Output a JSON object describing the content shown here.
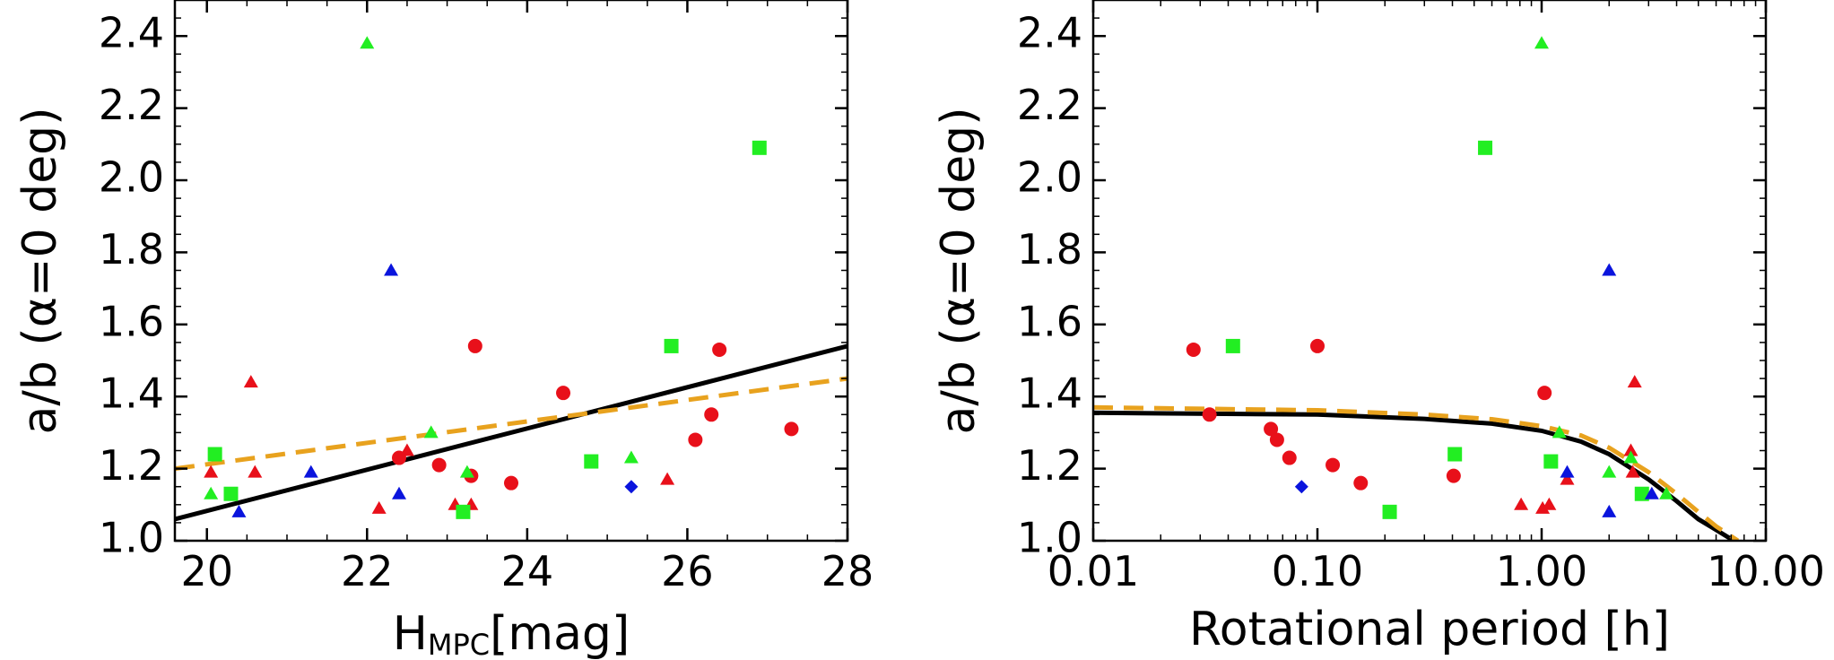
{
  "chart_data": [
    {
      "type": "scatter",
      "xlabel_main": "H",
      "xlabel_sub": "MPC",
      "xlabel_tail": "[mag]",
      "ylabel": "a/b (α=0 deg)",
      "xscale": "linear",
      "xlim": [
        19.6,
        28
      ],
      "ylim": [
        1.0,
        2.5
      ],
      "xticks": [
        20,
        22,
        24,
        26,
        28
      ],
      "xtick_labels": [
        "20",
        "22",
        "24",
        "26",
        "28"
      ],
      "yticks": [
        1.0,
        1.2,
        1.4,
        1.6,
        1.8,
        2.0,
        2.2,
        2.4
      ],
      "ytick_labels": [
        "1.0",
        "1.2",
        "1.4",
        "1.6",
        "1.8",
        "2.0",
        "2.2",
        "2.4"
      ],
      "grid": false,
      "colors": {
        "red": "#e8101a",
        "green": "#22ee22",
        "blue": "#0a14dd",
        "black": "#000000",
        "orange": "#e8a21e"
      },
      "series": [
        {
          "marker": "circle",
          "color": "red",
          "points": [
            [
              22.4,
              1.23
            ],
            [
              22.9,
              1.21
            ],
            [
              23.3,
              1.18
            ],
            [
              23.35,
              1.54
            ],
            [
              23.8,
              1.16
            ],
            [
              24.45,
              1.41
            ],
            [
              26.1,
              1.28
            ],
            [
              26.3,
              1.35
            ],
            [
              26.4,
              1.53
            ],
            [
              27.3,
              1.31
            ]
          ]
        },
        {
          "marker": "triangle",
          "color": "red",
          "points": [
            [
              20.05,
              1.19
            ],
            [
              20.55,
              1.44
            ],
            [
              20.6,
              1.19
            ],
            [
              22.15,
              1.09
            ],
            [
              22.5,
              1.25
            ],
            [
              23.1,
              1.1
            ],
            [
              23.3,
              1.1
            ],
            [
              25.75,
              1.17
            ]
          ]
        },
        {
          "marker": "triangle",
          "color": "green",
          "points": [
            [
              20.05,
              1.13
            ],
            [
              22.0,
              2.38
            ],
            [
              22.8,
              1.3
            ],
            [
              23.25,
              1.19
            ],
            [
              25.3,
              1.23
            ]
          ]
        },
        {
          "marker": "square",
          "color": "green",
          "points": [
            [
              20.1,
              1.24
            ],
            [
              20.3,
              1.13
            ],
            [
              23.2,
              1.08
            ],
            [
              24.8,
              1.22
            ],
            [
              25.8,
              1.54
            ],
            [
              26.9,
              2.09
            ]
          ]
        },
        {
          "marker": "triangle",
          "color": "blue",
          "points": [
            [
              20.4,
              1.08
            ],
            [
              21.3,
              1.19
            ],
            [
              22.3,
              1.75
            ],
            [
              22.4,
              1.13
            ]
          ]
        },
        {
          "marker": "diamond",
          "color": "blue",
          "points": [
            [
              25.3,
              1.15
            ]
          ]
        }
      ],
      "fit_lines": [
        {
          "style": "solid",
          "color": "black",
          "points": [
            [
              19.6,
              1.06
            ],
            [
              28,
              1.54
            ]
          ]
        },
        {
          "style": "dashed",
          "color": "orange",
          "points": [
            [
              19.6,
              1.2
            ],
            [
              28,
              1.45
            ]
          ]
        }
      ]
    },
    {
      "type": "scatter",
      "xlabel": "Rotational period [h]",
      "ylabel": "a/b (α=0 deg)",
      "xscale": "log",
      "xlim": [
        0.01,
        10
      ],
      "ylim": [
        1.0,
        2.5
      ],
      "xticks": [
        0.01,
        0.1,
        1,
        10
      ],
      "xtick_labels": [
        "0.01",
        "0.10",
        "1.00",
        "10.00"
      ],
      "yticks": [
        1.0,
        1.2,
        1.4,
        1.6,
        1.8,
        2.0,
        2.2,
        2.4
      ],
      "ytick_labels": [
        "1.0",
        "1.2",
        "1.4",
        "1.6",
        "1.8",
        "2.0",
        "2.2",
        "2.4"
      ],
      "grid": false,
      "series": [
        {
          "marker": "circle",
          "color": "red",
          "points": [
            [
              0.028,
              1.53
            ],
            [
              0.033,
              1.35
            ],
            [
              0.062,
              1.31
            ],
            [
              0.066,
              1.28
            ],
            [
              0.075,
              1.23
            ],
            [
              0.1,
              1.54
            ],
            [
              0.117,
              1.21
            ],
            [
              0.156,
              1.16
            ],
            [
              0.405,
              1.18
            ],
            [
              1.03,
              1.41
            ]
          ]
        },
        {
          "marker": "triangle",
          "color": "red",
          "points": [
            [
              0.81,
              1.1
            ],
            [
              1.01,
              1.09
            ],
            [
              1.08,
              1.1
            ],
            [
              1.3,
              1.17
            ],
            [
              2.5,
              1.25
            ],
            [
              2.55,
              1.19
            ],
            [
              2.6,
              1.44
            ]
          ]
        },
        {
          "marker": "triangle",
          "color": "green",
          "points": [
            [
              1.0,
              2.38
            ],
            [
              1.2,
              1.3
            ],
            [
              2.0,
              1.19
            ],
            [
              2.5,
              1.23
            ],
            [
              3.6,
              1.13
            ]
          ]
        },
        {
          "marker": "square",
          "color": "green",
          "points": [
            [
              0.042,
              1.54
            ],
            [
              0.21,
              1.08
            ],
            [
              0.41,
              1.24
            ],
            [
              0.56,
              2.09
            ],
            [
              1.1,
              1.22
            ],
            [
              2.8,
              1.13
            ]
          ]
        },
        {
          "marker": "triangle",
          "color": "blue",
          "points": [
            [
              1.3,
              1.19
            ],
            [
              2.0,
              1.75
            ],
            [
              2.0,
              1.08
            ],
            [
              3.1,
              1.13
            ]
          ]
        },
        {
          "marker": "diamond",
          "color": "blue",
          "points": [
            [
              0.085,
              1.15
            ]
          ]
        }
      ],
      "fit_lines": [
        {
          "style": "solid",
          "color": "black",
          "points": [
            [
              0.01,
              1.355
            ],
            [
              0.1,
              1.35
            ],
            [
              0.3,
              1.338
            ],
            [
              0.6,
              1.325
            ],
            [
              1.0,
              1.305
            ],
            [
              1.5,
              1.275
            ],
            [
              2.0,
              1.24
            ],
            [
              3.0,
              1.17
            ],
            [
              4.0,
              1.11
            ],
            [
              5.0,
              1.06
            ],
            [
              6.0,
              1.03
            ],
            [
              7.2,
              1.0
            ]
          ]
        },
        {
          "style": "dashed",
          "color": "orange",
          "points": [
            [
              0.01,
              1.37
            ],
            [
              0.1,
              1.362
            ],
            [
              0.3,
              1.35
            ],
            [
              0.6,
              1.337
            ],
            [
              1.0,
              1.318
            ],
            [
              1.5,
              1.292
            ],
            [
              2.0,
              1.258
            ],
            [
              3.0,
              1.19
            ],
            [
              4.0,
              1.13
            ],
            [
              5.0,
              1.08
            ],
            [
              6.0,
              1.04
            ],
            [
              7.5,
              1.0
            ]
          ]
        }
      ]
    }
  ]
}
